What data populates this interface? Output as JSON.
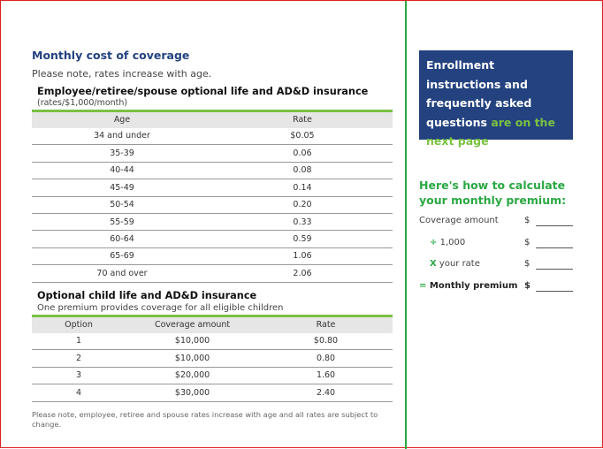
{
  "left": {
    "title": "Monthly cost of coverage",
    "note": "Please note, rates increase with age.",
    "table1": {
      "title": "Employee/retiree/spouse optional life and AD&D insurance",
      "subtitle": "(rates/$1,000/month)",
      "headers": [
        "Age",
        "Rate"
      ],
      "rows": [
        [
          "34 and under",
          "$0.05"
        ],
        [
          "35-39",
          "0.06"
        ],
        [
          "40-44",
          "0.08"
        ],
        [
          "45-49",
          "0.14"
        ],
        [
          "50-54",
          "0.20"
        ],
        [
          "55-59",
          "0.33"
        ],
        [
          "60-64",
          "0.59"
        ],
        [
          "65-69",
          "1.06"
        ],
        [
          "70 and over",
          "2.06"
        ]
      ]
    },
    "table2": {
      "title": "Optional child life and AD&D insurance",
      "subtitle": "One premium provides coverage for all eligible children",
      "headers": [
        "Option",
        "Coverage amount",
        "Rate"
      ],
      "rows": [
        [
          "1",
          "$10,000",
          "$0.80"
        ],
        [
          "2",
          "$10,000",
          "0.80"
        ],
        [
          "3",
          "$20,000",
          "1.60"
        ],
        [
          "4",
          "$30,000",
          "2.40"
        ]
      ]
    },
    "footnote": "Please note, employee, retiree and spouse rates increase with age and all rates are subject to change."
  },
  "right": {
    "box": {
      "white": "Enrollment instructions and frequently asked questions",
      "green": "are on the next page"
    },
    "calc": {
      "title": "Here's how to calculate your monthly premium:",
      "rows": [
        {
          "op": "",
          "label": "Coverage amount",
          "currency": "$"
        },
        {
          "op": "÷",
          "label": "1,000",
          "currency": "$"
        },
        {
          "op": "X",
          "label": "your rate",
          "currency": "$"
        },
        {
          "op": "=",
          "label": "Monthly premium",
          "currency": "$"
        }
      ]
    }
  },
  "colors": {
    "navy": "#23427f",
    "green": "#2aa843",
    "light_green": "#7ac143"
  }
}
